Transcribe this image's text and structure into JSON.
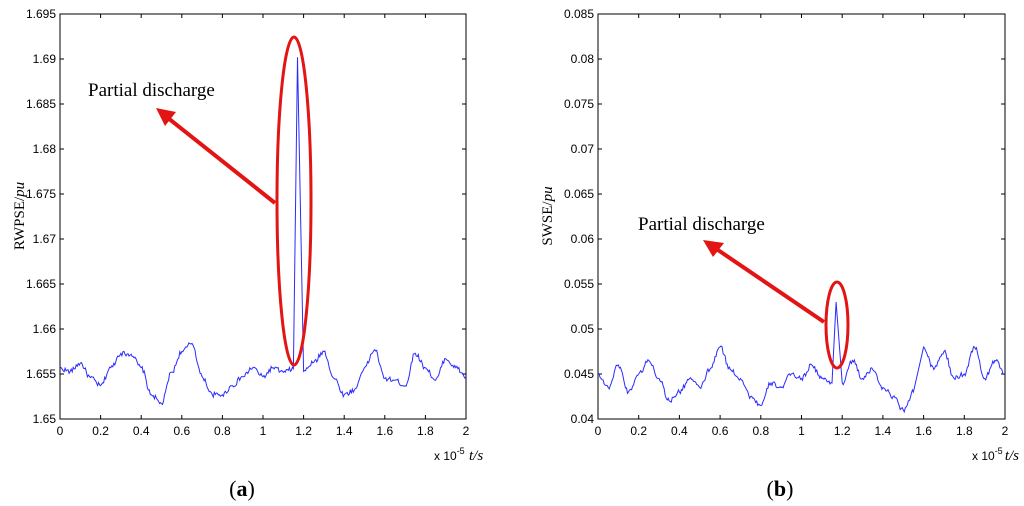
{
  "chart_data": [
    {
      "type": "line",
      "panel_label": "(a)",
      "panel_letter": "a",
      "ylabel_main": "RWPSE/",
      "ylabel_unit": "pu",
      "xlabel": "t/s",
      "x_multiplier_base": "x 10",
      "x_multiplier_exp": "-5",
      "xlim": [
        0,
        2
      ],
      "ylim": [
        1.65,
        1.695
      ],
      "xticks": [
        "0",
        "0.2",
        "0.4",
        "0.6",
        "0.8",
        "1",
        "1.2",
        "1.4",
        "1.6",
        "1.8",
        "2"
      ],
      "yticks": [
        "1.65",
        "1.655",
        "1.66",
        "1.665",
        "1.67",
        "1.675",
        "1.68",
        "1.685",
        "1.69",
        "1.695"
      ],
      "grid": false,
      "annotation": "Partial discharge",
      "series_color": "#2b2bff",
      "series": [
        {
          "x": [
            0,
            0.05,
            0.1,
            0.15,
            0.2,
            0.25,
            0.3,
            0.35,
            0.4,
            0.45,
            0.5,
            0.55,
            0.6,
            0.65,
            0.7,
            0.75,
            0.8,
            0.85,
            0.9,
            0.95,
            1.0,
            1.05,
            1.1,
            1.15,
            1.17,
            1.2,
            1.25,
            1.3,
            1.35,
            1.4,
            1.45,
            1.5,
            1.55,
            1.6,
            1.65,
            1.7,
            1.75,
            1.8,
            1.85,
            1.9,
            1.95,
            2.0
          ],
          "y": [
            1.6556,
            1.6553,
            1.6562,
            1.6546,
            1.6537,
            1.6557,
            1.6573,
            1.6572,
            1.6557,
            1.6527,
            1.6517,
            1.6552,
            1.6575,
            1.6584,
            1.6547,
            1.6527,
            1.6527,
            1.6537,
            1.6547,
            1.6557,
            1.6547,
            1.6557,
            1.6552,
            1.6556,
            1.6902,
            1.6553,
            1.6563,
            1.6575,
            1.6545,
            1.6527,
            1.6532,
            1.6557,
            1.6577,
            1.6545,
            1.6543,
            1.6537,
            1.6573,
            1.6557,
            1.6543,
            1.6567,
            1.6557,
            1.6547
          ]
        }
      ]
    },
    {
      "type": "line",
      "panel_label": "(b)",
      "panel_letter": "b",
      "ylabel_main": "SWSE/",
      "ylabel_unit": "pu",
      "xlabel": "t/s",
      "x_multiplier_base": "x 10",
      "x_multiplier_exp": "-5",
      "xlim": [
        0,
        2
      ],
      "ylim": [
        0.04,
        0.085
      ],
      "xticks": [
        "0",
        "0.2",
        "0.4",
        "0.6",
        "0.8",
        "1",
        "1.2",
        "1.4",
        "1.6",
        "1.8",
        "2"
      ],
      "yticks": [
        "0.04",
        "0.045",
        "0.05",
        "0.055",
        "0.06",
        "0.065",
        "0.07",
        "0.075",
        "0.08",
        "0.085"
      ],
      "grid": false,
      "annotation": "Partial discharge",
      "series_color": "#2b2bff",
      "series": [
        {
          "x": [
            0,
            0.05,
            0.1,
            0.15,
            0.2,
            0.25,
            0.3,
            0.35,
            0.4,
            0.45,
            0.5,
            0.55,
            0.6,
            0.65,
            0.7,
            0.75,
            0.8,
            0.85,
            0.9,
            0.95,
            1.0,
            1.05,
            1.1,
            1.15,
            1.17,
            1.2,
            1.25,
            1.3,
            1.35,
            1.4,
            1.45,
            1.5,
            1.55,
            1.6,
            1.65,
            1.7,
            1.75,
            1.8,
            1.85,
            1.9,
            1.95,
            2.0
          ],
          "y": [
            0.045,
            0.0435,
            0.046,
            0.043,
            0.045,
            0.0465,
            0.0445,
            0.042,
            0.043,
            0.0445,
            0.0435,
            0.0455,
            0.048,
            0.0455,
            0.0445,
            0.0425,
            0.0415,
            0.044,
            0.0435,
            0.045,
            0.0445,
            0.046,
            0.0445,
            0.044,
            0.053,
            0.044,
            0.0465,
            0.0445,
            0.0455,
            0.0435,
            0.0425,
            0.041,
            0.043,
            0.048,
            0.0455,
            0.0475,
            0.0445,
            0.045,
            0.048,
            0.0445,
            0.0465,
            0.045
          ]
        }
      ]
    }
  ]
}
